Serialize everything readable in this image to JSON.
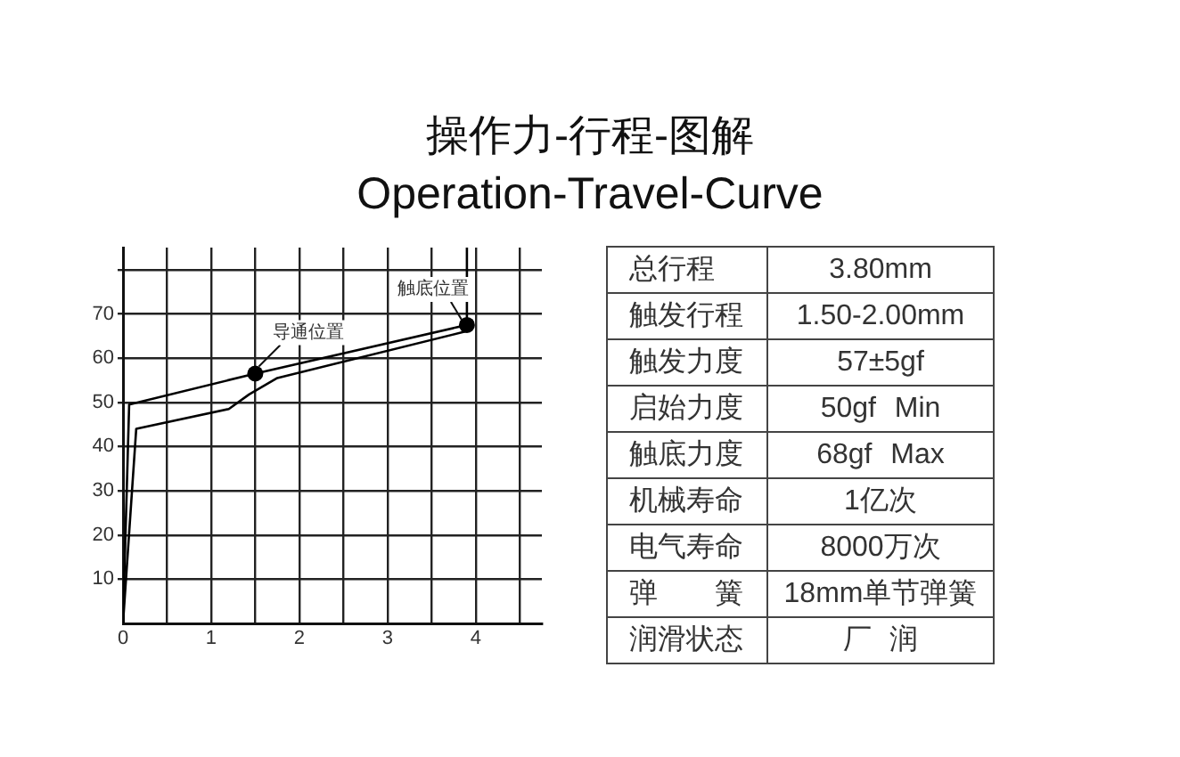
{
  "chart_data": [
    {
      "type": "line",
      "title": "操作力-行程-图解",
      "subtitle": "Operation-Travel-Curve",
      "xlim": [
        0,
        4.75
      ],
      "ylim": [
        0,
        85
      ],
      "xticks": [
        0,
        {
          "value": 0.5,
          "label": null
        },
        1,
        {
          "value": 1.5,
          "label": null
        },
        2,
        {
          "value": 2.5,
          "label": null
        },
        3,
        {
          "value": 3.5,
          "label": null
        },
        4,
        {
          "value": 4.5,
          "label": null
        }
      ],
      "yticks": [
        10,
        20,
        30,
        40,
        50,
        60,
        70,
        {
          "value": 80,
          "label": null
        }
      ],
      "grid": true,
      "series": [
        {
          "color": "#000000",
          "x": [
            0,
            0.07,
            1.5,
            3.9,
            3.9
          ],
          "values": [
            0,
            49.5,
            56.5,
            67.5,
            85
          ]
        },
        {
          "color": "#000000",
          "x": [
            0,
            0.15,
            1.2,
            1.43,
            1.75,
            3.88
          ],
          "values": [
            0,
            44,
            48.5,
            51.8,
            55.5,
            66
          ]
        },
        {
          "type": "scatter",
          "marker": "circle",
          "color": "#000000",
          "x": [
            1.5,
            3.9
          ],
          "values": [
            56.5,
            67.5
          ]
        }
      ],
      "annotations": [
        {
          "text": "导通位置",
          "x": 1.5,
          "y": 56.5
        },
        {
          "text": "触底位置",
          "x": 3.9,
          "y": 67.5
        }
      ]
    },
    {
      "type": "other",
      "annotations": [
        "总行程",
        "3.80mm",
        "触发行程",
        "1.50-2.00mm",
        "触发力度",
        "57±5gf",
        "启始力度",
        "50gf Min",
        "触底力度",
        "68gf Max",
        "机械寿命",
        "1亿次",
        "电气寿命",
        "8000万次",
        "弹 簧",
        "18mm单节弹簧",
        "润滑状态",
        "厂 润"
      ]
    }
  ]
}
